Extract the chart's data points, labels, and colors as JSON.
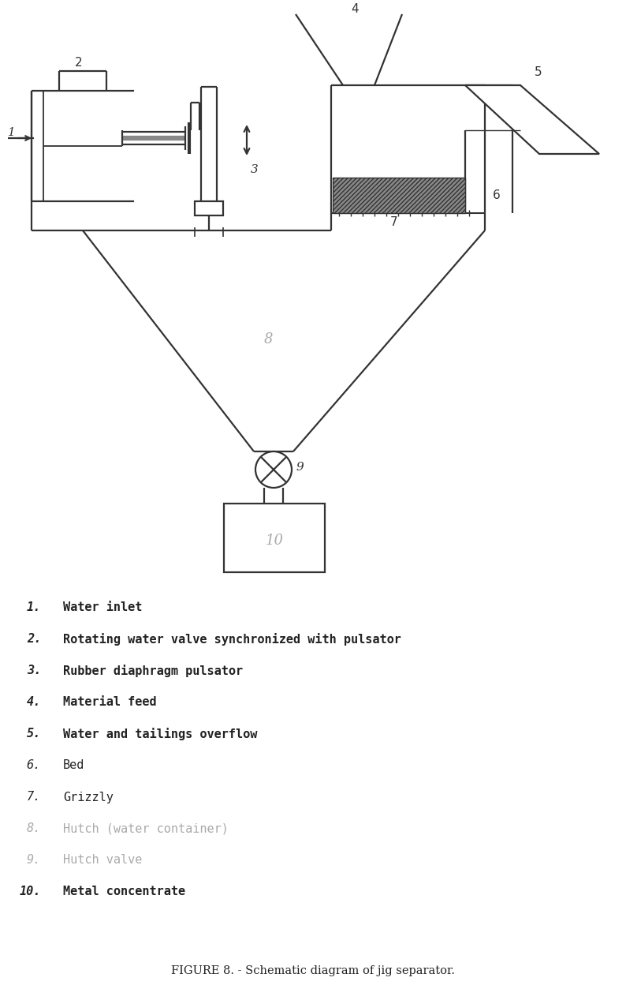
{
  "title": "FIGURE 8. - Schematic diagram of jig separator.",
  "background_color": "#ffffff",
  "line_color": "#333333",
  "legend_items": [
    {
      "num": "1.",
      "text": "Water inlet",
      "bold": true,
      "gray": false
    },
    {
      "num": "2.",
      "text": "Rotating water valve synchronized with pulsator",
      "bold": true,
      "gray": false
    },
    {
      "num": "3.",
      "text": "Rubber diaphragm pulsator",
      "bold": true,
      "gray": false
    },
    {
      "num": "4.",
      "text": "Material feed",
      "bold": true,
      "gray": false
    },
    {
      "num": "5.",
      "text": "Water and tailings overflow",
      "bold": true,
      "gray": false
    },
    {
      "num": "6.",
      "text": "Bed",
      "bold": false,
      "gray": false
    },
    {
      "num": "7.",
      "text": "Grizzly",
      "bold": false,
      "gray": false
    },
    {
      "num": "8.",
      "text": "Hutch (water container)",
      "bold": false,
      "gray": true
    },
    {
      "num": "9.",
      "text": "Hutch valve",
      "bold": false,
      "gray": true
    },
    {
      "num": "10.",
      "text": "Metal concentrate",
      "bold": true,
      "gray": false
    }
  ]
}
